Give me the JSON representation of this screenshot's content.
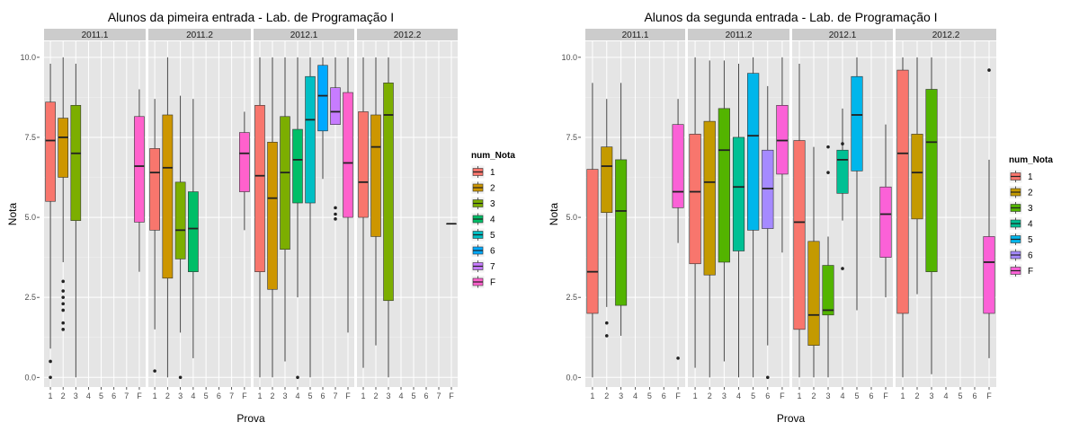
{
  "chart_data": [
    {
      "type": "boxplot",
      "title": "Alunos da pimeira entrada -  Lab. de Programação I",
      "xlabel": "Prova",
      "ylabel": "Nota",
      "ylim": [
        -0.3,
        10.5
      ],
      "yticks": [
        0,
        2.5,
        5,
        7.5,
        10
      ],
      "ytick_labels": [
        "0.0",
        "2.5",
        "5.0",
        "7.5",
        "10.0"
      ],
      "x_categories": [
        "1",
        "2",
        "3",
        "4",
        "5",
        "6",
        "7",
        "F"
      ],
      "facets": [
        "2011.1",
        "2011.2",
        "2012.1",
        "2012.2"
      ],
      "legend": {
        "title": "num_Nota",
        "items": [
          "1",
          "2",
          "3",
          "4",
          "5",
          "6",
          "7",
          "F"
        ],
        "position": "right"
      },
      "grid": true,
      "boxes": [
        {
          "facet": 0,
          "cat": "1",
          "min": 0.9,
          "q1": 5.5,
          "med": 7.4,
          "q3": 8.6,
          "max": 9.8,
          "outliers": [
            0.5,
            0.0
          ]
        },
        {
          "facet": 0,
          "cat": "2",
          "min": 3.6,
          "q1": 6.25,
          "med": 7.5,
          "q3": 8.1,
          "max": 10.0,
          "outliers": [
            3.0,
            2.7,
            2.5,
            2.3,
            2.1,
            1.7,
            1.5
          ]
        },
        {
          "facet": 0,
          "cat": "3",
          "min": 0.0,
          "q1": 4.9,
          "med": 7.0,
          "q3": 8.5,
          "max": 9.8,
          "outliers": []
        },
        {
          "facet": 0,
          "cat": "F",
          "min": 3.3,
          "q1": 4.85,
          "med": 6.6,
          "q3": 8.15,
          "max": 9.0,
          "outliers": []
        },
        {
          "facet": 1,
          "cat": "1",
          "min": 1.5,
          "q1": 4.6,
          "med": 6.4,
          "q3": 7.15,
          "max": 8.7,
          "outliers": [
            0.2
          ]
        },
        {
          "facet": 1,
          "cat": "2",
          "min": 0.0,
          "q1": 3.1,
          "med": 6.55,
          "q3": 8.2,
          "max": 10.0,
          "outliers": []
        },
        {
          "facet": 1,
          "cat": "3",
          "min": 1.4,
          "q1": 3.7,
          "med": 4.6,
          "q3": 6.1,
          "max": 8.8,
          "outliers": [
            0.0
          ]
        },
        {
          "facet": 1,
          "cat": "4",
          "min": 0.6,
          "q1": 3.3,
          "med": 4.65,
          "q3": 5.8,
          "max": 8.7,
          "outliers": []
        },
        {
          "facet": 1,
          "cat": "F",
          "min": 4.6,
          "q1": 5.8,
          "med": 7.0,
          "q3": 7.65,
          "max": 8.3,
          "outliers": []
        },
        {
          "facet": 2,
          "cat": "1",
          "min": 0.0,
          "q1": 3.3,
          "med": 6.3,
          "q3": 8.5,
          "max": 10.0,
          "outliers": []
        },
        {
          "facet": 2,
          "cat": "2",
          "min": 0.0,
          "q1": 2.75,
          "med": 5.6,
          "q3": 7.35,
          "max": 10.0,
          "outliers": []
        },
        {
          "facet": 2,
          "cat": "3",
          "min": 0.5,
          "q1": 4.0,
          "med": 6.4,
          "q3": 8.15,
          "max": 10.0,
          "outliers": []
        },
        {
          "facet": 2,
          "cat": "4",
          "min": 2.5,
          "q1": 5.45,
          "med": 6.8,
          "q3": 7.75,
          "max": 10.0,
          "outliers": [
            0.0
          ]
        },
        {
          "facet": 2,
          "cat": "5",
          "min": 0.0,
          "q1": 5.45,
          "med": 8.05,
          "q3": 9.4,
          "max": 10.0,
          "outliers": []
        },
        {
          "facet": 2,
          "cat": "6",
          "min": 6.2,
          "q1": 7.7,
          "med": 8.8,
          "q3": 9.75,
          "max": 10.0,
          "outliers": []
        },
        {
          "facet": 2,
          "cat": "7",
          "min": 7.9,
          "q1": 7.9,
          "med": 8.3,
          "q3": 9.05,
          "max": 10.0,
          "outliers": [
            5.3,
            5.1,
            4.95
          ]
        },
        {
          "facet": 2,
          "cat": "F",
          "min": 1.4,
          "q1": 5.0,
          "med": 6.7,
          "q3": 8.9,
          "max": 10.0,
          "outliers": []
        },
        {
          "facet": 3,
          "cat": "1",
          "min": 0.3,
          "q1": 5.0,
          "med": 6.1,
          "q3": 8.3,
          "max": 10.0,
          "outliers": []
        },
        {
          "facet": 3,
          "cat": "2",
          "min": 1.0,
          "q1": 4.4,
          "med": 7.2,
          "q3": 8.2,
          "max": 10.0,
          "outliers": []
        },
        {
          "facet": 3,
          "cat": "3",
          "min": 0.0,
          "q1": 2.4,
          "med": 8.2,
          "q3": 9.2,
          "max": 10.0,
          "outliers": []
        },
        {
          "facet": 3,
          "cat": "F",
          "min": 4.8,
          "q1": 4.8,
          "med": 4.8,
          "q3": 4.8,
          "max": 4.8,
          "outliers": []
        }
      ]
    },
    {
      "type": "boxplot",
      "title": "Alunos da segunda entrada -  Lab. de Programação I",
      "xlabel": "Prova",
      "ylabel": "Nota",
      "ylim": [
        -0.3,
        10.5
      ],
      "yticks": [
        0,
        2.5,
        5,
        7.5,
        10
      ],
      "ytick_labels": [
        "0.0",
        "2.5",
        "5.0",
        "7.5",
        "10.0"
      ],
      "x_categories": [
        "1",
        "2",
        "3",
        "4",
        "5",
        "6",
        "F"
      ],
      "facets": [
        "2011.1",
        "2011.2",
        "2012.1",
        "2012.2"
      ],
      "legend": {
        "title": "num_Nota",
        "items": [
          "1",
          "2",
          "3",
          "4",
          "5",
          "6",
          "F"
        ],
        "position": "right"
      },
      "grid": true,
      "boxes": [
        {
          "facet": 0,
          "cat": "1",
          "min": 0.0,
          "q1": 2.0,
          "med": 3.3,
          "q3": 6.5,
          "max": 9.2,
          "outliers": []
        },
        {
          "facet": 0,
          "cat": "2",
          "min": 2.2,
          "q1": 5.15,
          "med": 6.6,
          "q3": 7.2,
          "max": 8.7,
          "outliers": [
            1.7,
            1.3
          ]
        },
        {
          "facet": 0,
          "cat": "3",
          "min": 1.3,
          "q1": 2.25,
          "med": 5.2,
          "q3": 6.8,
          "max": 9.2,
          "outliers": []
        },
        {
          "facet": 0,
          "cat": "F",
          "min": 4.2,
          "q1": 5.3,
          "med": 5.8,
          "q3": 7.9,
          "max": 8.7,
          "outliers": [
            0.6
          ]
        },
        {
          "facet": 1,
          "cat": "1",
          "min": 0.3,
          "q1": 3.55,
          "med": 5.8,
          "q3": 7.6,
          "max": 10.0,
          "outliers": []
        },
        {
          "facet": 1,
          "cat": "2",
          "min": 0.0,
          "q1": 3.2,
          "med": 6.1,
          "q3": 8.0,
          "max": 9.9,
          "outliers": []
        },
        {
          "facet": 1,
          "cat": "3",
          "min": 0.5,
          "q1": 3.6,
          "med": 7.1,
          "q3": 8.4,
          "max": 9.9,
          "outliers": []
        },
        {
          "facet": 1,
          "cat": "4",
          "min": 0.0,
          "q1": 3.95,
          "med": 5.95,
          "q3": 7.5,
          "max": 9.8,
          "outliers": []
        },
        {
          "facet": 1,
          "cat": "5",
          "min": 0.0,
          "q1": 4.6,
          "med": 7.55,
          "q3": 9.5,
          "max": 10.0,
          "outliers": []
        },
        {
          "facet": 1,
          "cat": "6",
          "min": 1.0,
          "q1": 4.65,
          "med": 5.9,
          "q3": 7.1,
          "max": 9.1,
          "outliers": [
            0.0
          ]
        },
        {
          "facet": 1,
          "cat": "F",
          "min": 3.9,
          "q1": 6.35,
          "med": 7.4,
          "q3": 8.5,
          "max": 10.0,
          "outliers": []
        },
        {
          "facet": 2,
          "cat": "1",
          "min": 0.0,
          "q1": 1.5,
          "med": 4.85,
          "q3": 7.4,
          "max": 9.8,
          "outliers": []
        },
        {
          "facet": 2,
          "cat": "2",
          "min": 0.0,
          "q1": 1.0,
          "med": 1.95,
          "q3": 4.25,
          "max": 7.2,
          "outliers": []
        },
        {
          "facet": 2,
          "cat": "3",
          "min": 0.0,
          "q1": 1.95,
          "med": 2.1,
          "q3": 3.5,
          "max": 4.4,
          "outliers": [
            7.2,
            6.4
          ]
        },
        {
          "facet": 2,
          "cat": "4",
          "min": 4.9,
          "q1": 5.75,
          "med": 6.8,
          "q3": 7.1,
          "max": 8.4,
          "outliers": [
            3.4,
            7.3
          ]
        },
        {
          "facet": 2,
          "cat": "5",
          "min": 2.1,
          "q1": 6.45,
          "med": 8.2,
          "q3": 9.4,
          "max": 10.0,
          "outliers": []
        },
        {
          "facet": 2,
          "cat": "F",
          "min": 2.5,
          "q1": 3.75,
          "med": 5.1,
          "q3": 5.95,
          "max": 7.9,
          "outliers": []
        },
        {
          "facet": 3,
          "cat": "1",
          "min": 0.0,
          "q1": 2.0,
          "med": 7.0,
          "q3": 9.6,
          "max": 10.0,
          "outliers": []
        },
        {
          "facet": 3,
          "cat": "2",
          "min": 2.6,
          "q1": 4.95,
          "med": 6.4,
          "q3": 7.6,
          "max": 10.0,
          "outliers": []
        },
        {
          "facet": 3,
          "cat": "3",
          "min": 0.1,
          "q1": 3.3,
          "med": 7.35,
          "q3": 9.0,
          "max": 10.0,
          "outliers": []
        },
        {
          "facet": 3,
          "cat": "F",
          "min": 0.6,
          "q1": 2.0,
          "med": 3.6,
          "q3": 4.4,
          "max": 6.8,
          "outliers": [
            9.6
          ]
        }
      ]
    }
  ],
  "colors": {
    "1": "#F8766D",
    "2": "#C49A00",
    "3": "#53B400",
    "4": "#00C094",
    "5": "#00B6EB",
    "6": "#A58AFF",
    "7": "#FB61D7",
    "F": "#FB61D7",
    "panel_bg": "#E5E5E5",
    "strip_bg": "#CCCCCC",
    "grid_major": "#FFFFFF",
    "grid_minor": "#F2F2F2"
  },
  "colors_right": {
    "1": "#F8766D",
    "2": "#C49A00",
    "3": "#53B400",
    "4": "#00C094",
    "5": "#00B6EB",
    "6": "#A58AFF",
    "F": "#FB61D7"
  },
  "colors_left": {
    "1": "#F8766D",
    "2": "#CD9600",
    "3": "#7CAE00",
    "4": "#00BE67",
    "5": "#00BFC4",
    "6": "#00A9FF",
    "7": "#C77CFF",
    "F": "#FF61CC"
  }
}
